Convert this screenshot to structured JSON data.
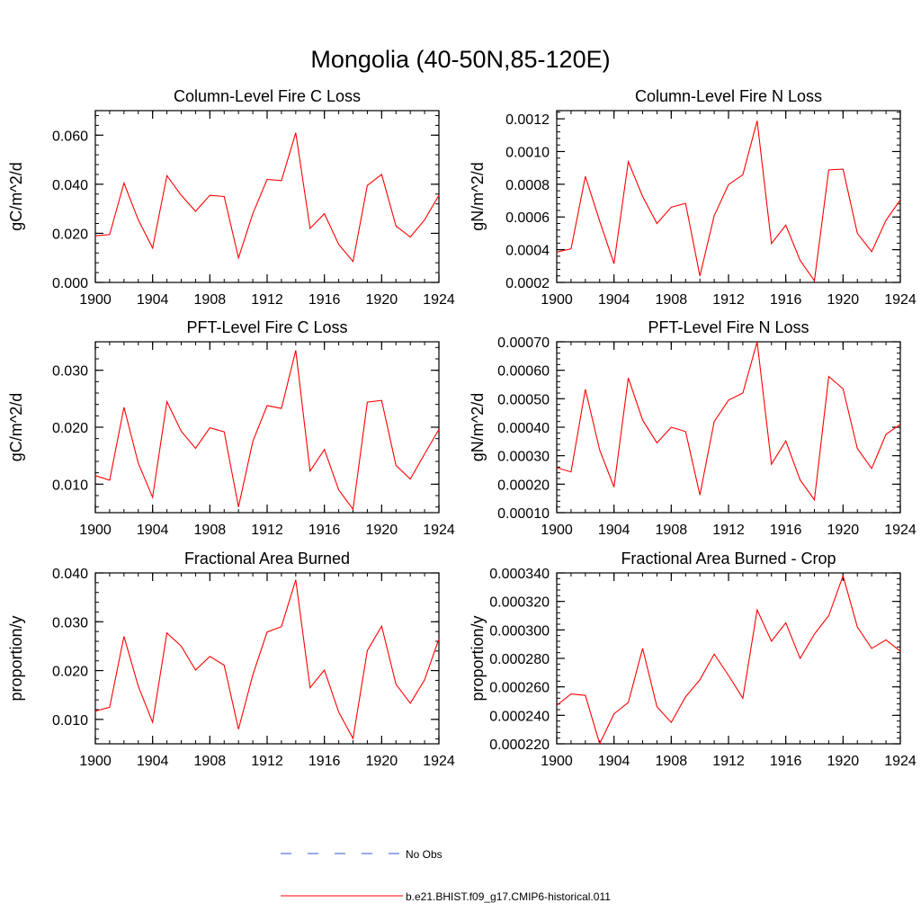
{
  "figure": {
    "title": "Mongolia (40-50N,85-120E)"
  },
  "legend": {
    "items": [
      {
        "label": "No Obs",
        "style": "dashed",
        "color": "#3355cc"
      },
      {
        "label": "b.e21.BHIST.f09_g17.CMIP6-historical.011",
        "style": "solid",
        "color": "#ff0000"
      }
    ]
  },
  "series_color": "#ff0000",
  "chart_data": [
    {
      "type": "line",
      "title": "Column-Level Fire C Loss",
      "ylabel": "gC/m^2/d",
      "xlim": [
        1900,
        1924
      ],
      "ylim": [
        0,
        0.07
      ],
      "yticks": [
        0.0,
        0.02,
        0.04,
        0.06
      ],
      "ytick_labels": [
        "0.000",
        "0.020",
        "0.040",
        "0.060"
      ],
      "xticks": [
        1900,
        1904,
        1908,
        1912,
        1916,
        1920,
        1924
      ],
      "xtick_labels": [
        "1900",
        "1904",
        "1908",
        "1912",
        "1916",
        "1920",
        "1924"
      ],
      "x": [
        1900,
        1901,
        1902,
        1903,
        1904,
        1905,
        1906,
        1907,
        1908,
        1909,
        1910,
        1911,
        1912,
        1913,
        1914,
        1915,
        1916,
        1917,
        1918,
        1919,
        1920,
        1921,
        1922,
        1923,
        1924
      ],
      "series": [
        {
          "name": "b.e21.BHIST.f09_g17.CMIP6-historical.011",
          "values": [
            0.019,
            0.0195,
            0.0405,
            0.0255,
            0.014,
            0.0435,
            0.0355,
            0.029,
            0.0355,
            0.035,
            0.01,
            0.028,
            0.042,
            0.0415,
            0.061,
            0.022,
            0.028,
            0.0155,
            0.0085,
            0.0395,
            0.044,
            0.023,
            0.0185,
            0.0255,
            0.0355
          ]
        }
      ]
    },
    {
      "type": "line",
      "title": "Column-Level Fire N Loss",
      "ylabel": "gN/m^2/d",
      "xlim": [
        1900,
        1924
      ],
      "ylim": [
        0.0002,
        0.00125
      ],
      "yticks": [
        0.0002,
        0.0004,
        0.0006,
        0.0008,
        0.001,
        0.0012
      ],
      "ytick_labels": [
        "0.0002",
        "0.0004",
        "0.0006",
        "0.0008",
        "0.0010",
        "0.0012"
      ],
      "xticks": [
        1900,
        1904,
        1908,
        1912,
        1916,
        1920,
        1924
      ],
      "xtick_labels": [
        "1900",
        "1904",
        "1908",
        "1912",
        "1916",
        "1920",
        "1924"
      ],
      "x": [
        1900,
        1901,
        1902,
        1903,
        1904,
        1905,
        1906,
        1907,
        1908,
        1909,
        1910,
        1911,
        1912,
        1913,
        1914,
        1915,
        1916,
        1917,
        1918,
        1919,
        1920,
        1921,
        1922,
        1923,
        1924
      ],
      "series": [
        {
          "name": "b.e21.BHIST.f09_g17.CMIP6-historical.011",
          "values": [
            0.000385,
            0.000405,
            0.000848,
            0.000575,
            0.000315,
            0.000938,
            0.000725,
            0.00056,
            0.00066,
            0.000683,
            0.00024,
            0.000608,
            0.000798,
            0.000858,
            0.001188,
            0.000437,
            0.00055,
            0.000335,
            0.00021,
            0.000888,
            0.000892,
            0.0005,
            0.000388,
            0.00058,
            0.000705
          ]
        }
      ]
    },
    {
      "type": "line",
      "title": "PFT-Level Fire C Loss",
      "ylabel": "gC/m^2/d",
      "xlim": [
        1900,
        1924
      ],
      "ylim": [
        0.005,
        0.035
      ],
      "yticks": [
        0.01,
        0.02,
        0.03
      ],
      "ytick_labels": [
        "0.010",
        "0.020",
        "0.030"
      ],
      "xticks": [
        1900,
        1904,
        1908,
        1912,
        1916,
        1920,
        1924
      ],
      "xtick_labels": [
        "1900",
        "1904",
        "1908",
        "1912",
        "1916",
        "1920",
        "1924"
      ],
      "x": [
        1900,
        1901,
        1902,
        1903,
        1904,
        1905,
        1906,
        1907,
        1908,
        1909,
        1910,
        1911,
        1912,
        1913,
        1914,
        1915,
        1916,
        1917,
        1918,
        1919,
        1920,
        1921,
        1922,
        1923,
        1924
      ],
      "series": [
        {
          "name": "b.e21.BHIST.f09_g17.CMIP6-historical.011",
          "values": [
            0.0115,
            0.0107,
            0.0235,
            0.0137,
            0.0077,
            0.0245,
            0.0193,
            0.0163,
            0.0199,
            0.0192,
            0.006,
            0.0175,
            0.0238,
            0.0233,
            0.0335,
            0.0123,
            0.0161,
            0.009,
            0.0056,
            0.0244,
            0.0247,
            0.0133,
            0.0109,
            0.0153,
            0.0196
          ]
        }
      ]
    },
    {
      "type": "line",
      "title": "PFT-Level Fire N Loss",
      "ylabel": "gN/m^2/d",
      "xlim": [
        1900,
        1924
      ],
      "ylim": [
        0.0001,
        0.0007
      ],
      "yticks": [
        0.0001,
        0.0002,
        0.0003,
        0.0004,
        0.0005,
        0.0006,
        0.0007
      ],
      "ytick_labels": [
        "0.00010",
        "0.00020",
        "0.00030",
        "0.00040",
        "0.00050",
        "0.00060",
        "0.00070"
      ],
      "xticks": [
        1900,
        1904,
        1908,
        1912,
        1916,
        1920,
        1924
      ],
      "xtick_labels": [
        "1900",
        "1904",
        "1908",
        "1912",
        "1916",
        "1920",
        "1924"
      ],
      "x": [
        1900,
        1901,
        1902,
        1903,
        1904,
        1905,
        1906,
        1907,
        1908,
        1909,
        1910,
        1911,
        1912,
        1913,
        1914,
        1915,
        1916,
        1917,
        1918,
        1919,
        1920,
        1921,
        1922,
        1923,
        1924
      ],
      "series": [
        {
          "name": "b.e21.BHIST.f09_g17.CMIP6-historical.011",
          "values": [
            0.000258,
            0.000243,
            0.000533,
            0.00032,
            0.00019,
            0.000573,
            0.000425,
            0.000345,
            0.0004,
            0.000385,
            0.000162,
            0.00042,
            0.000495,
            0.00052,
            0.0007,
            0.00027,
            0.000352,
            0.000215,
            0.000145,
            0.000578,
            0.000535,
            0.000325,
            0.000255,
            0.000375,
            0.00041
          ]
        }
      ]
    },
    {
      "type": "line",
      "title": "Fractional Area Burned",
      "ylabel": "proportion/y",
      "xlim": [
        1900,
        1924
      ],
      "ylim": [
        0.005,
        0.04
      ],
      "yticks": [
        0.01,
        0.02,
        0.03,
        0.04
      ],
      "ytick_labels": [
        "0.010",
        "0.020",
        "0.030",
        "0.040"
      ],
      "xticks": [
        1900,
        1904,
        1908,
        1912,
        1916,
        1920,
        1924
      ],
      "xtick_labels": [
        "1900",
        "1904",
        "1908",
        "1912",
        "1916",
        "1920",
        "1924"
      ],
      "x": [
        1900,
        1901,
        1902,
        1903,
        1904,
        1905,
        1906,
        1907,
        1908,
        1909,
        1910,
        1911,
        1912,
        1913,
        1914,
        1915,
        1916,
        1917,
        1918,
        1919,
        1920,
        1921,
        1922,
        1923,
        1924
      ],
      "series": [
        {
          "name": "b.e21.BHIST.f09_g17.CMIP6-historical.011",
          "values": [
            0.0117,
            0.0125,
            0.027,
            0.0168,
            0.0094,
            0.0277,
            0.025,
            0.0201,
            0.0229,
            0.0211,
            0.008,
            0.0191,
            0.0279,
            0.029,
            0.0386,
            0.0165,
            0.0201,
            0.0115,
            0.0061,
            0.0241,
            0.0291,
            0.0172,
            0.0133,
            0.0181,
            0.0265
          ]
        }
      ]
    },
    {
      "type": "line",
      "title": "Fractional Area Burned - Crop",
      "ylabel": "proportion/y",
      "xlim": [
        1900,
        1924
      ],
      "ylim": [
        0.00022,
        0.00034
      ],
      "yticks": [
        0.00022,
        0.00024,
        0.00026,
        0.00028,
        0.0003,
        0.00032,
        0.00034
      ],
      "ytick_labels": [
        "0.000220",
        "0.000240",
        "0.000260",
        "0.000280",
        "0.000300",
        "0.000320",
        "0.000340"
      ],
      "xticks": [
        1900,
        1904,
        1908,
        1912,
        1916,
        1920,
        1924
      ],
      "xtick_labels": [
        "1900",
        "1904",
        "1908",
        "1912",
        "1916",
        "1920",
        "1924"
      ],
      "x": [
        1900,
        1901,
        1902,
        1903,
        1904,
        1905,
        1906,
        1907,
        1908,
        1909,
        1910,
        1911,
        1912,
        1913,
        1914,
        1915,
        1916,
        1917,
        1918,
        1919,
        1920,
        1921,
        1922,
        1923,
        1924
      ],
      "series": [
        {
          "name": "b.e21.BHIST.f09_g17.CMIP6-historical.011",
          "values": [
            0.000247,
            0.000255,
            0.000254,
            0.00022,
            0.000241,
            0.000249,
            0.000287,
            0.000246,
            0.000235,
            0.000253,
            0.000265,
            0.000283,
            0.000268,
            0.000252,
            0.000314,
            0.000292,
            0.000305,
            0.00028,
            0.000297,
            0.00031,
            0.000338,
            0.000302,
            0.000287,
            0.000293,
            0.000285
          ]
        }
      ]
    }
  ]
}
